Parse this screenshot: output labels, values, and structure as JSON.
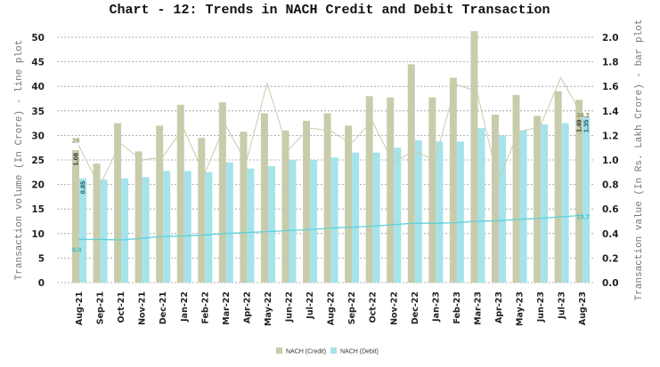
{
  "chart_data": {
    "type": "bar+line",
    "title": "Chart - 12: Trends in NACH Credit and Debit Transaction",
    "ylabel_left": "Transaction volume (In Crore) - line plot",
    "ylabel_right": "Transaction value (In Rs. Lakh Crore) - bar plot",
    "ylim_left": [
      0,
      55
    ],
    "yticks_left": [
      0,
      5,
      10,
      15,
      20,
      25,
      30,
      35,
      40,
      45,
      50
    ],
    "ylim_right": [
      0,
      2.2
    ],
    "yticks_right": [
      "0.0",
      "0.2",
      "0.4",
      "0.6",
      "0.8",
      "1.0",
      "1.2",
      "1.4",
      "1.6",
      "1.8",
      "2.0"
    ],
    "grid": true,
    "legend_position": "bottom",
    "categories": [
      "Aug-21",
      "Sep-21",
      "Oct-21",
      "Nov-21",
      "Dec-21",
      "Jan-22",
      "Feb-22",
      "Mar-22",
      "Apr-22",
      "May-22",
      "Jun-22",
      "Jul-22",
      "Aug-22",
      "Sep-22",
      "Oct-22",
      "Nov-22",
      "Dec-22",
      "Jan-23",
      "Feb-23",
      "Mar-23",
      "Apr-23",
      "May-23",
      "Jun-23",
      "Jul-23",
      "Aug-23"
    ],
    "bar_series": [
      {
        "name": "NACH (Credit)",
        "color": "#c8ccab",
        "axis": "right",
        "values": [
          1.08,
          0.97,
          1.3,
          1.07,
          1.28,
          1.45,
          1.18,
          1.47,
          1.23,
          1.38,
          1.24,
          1.32,
          1.38,
          1.28,
          1.52,
          1.51,
          1.78,
          1.51,
          1.67,
          2.05,
          1.37,
          1.53,
          1.36,
          1.56,
          1.49
        ]
      },
      {
        "name": "NACH (Debit)",
        "color": "#a6e3ea",
        "axis": "right",
        "values": [
          0.85,
          0.84,
          0.85,
          0.86,
          0.91,
          0.91,
          0.9,
          0.98,
          0.93,
          0.95,
          1.0,
          1.0,
          1.02,
          1.06,
          1.06,
          1.1,
          1.16,
          1.15,
          1.15,
          1.26,
          1.2,
          1.24,
          1.29,
          1.3,
          1.35
        ]
      }
    ],
    "line_series": [
      {
        "color": "#c8ccab",
        "axis": "left",
        "values": [
          28.1,
          19.6,
          28.4,
          25.0,
          25.5,
          31.5,
          22.0,
          32.2,
          24.5,
          40.6,
          27.0,
          31.5,
          31.0,
          28.3,
          33.0,
          24.5,
          26.8,
          25.0,
          40.4,
          39.0,
          20.8,
          30.8,
          31.7,
          41.8,
          34.2
        ]
      },
      {
        "color": "#5fd0d8",
        "axis": "left",
        "values": [
          8.8,
          8.8,
          8.7,
          9.0,
          9.4,
          9.5,
          9.7,
          10.0,
          10.2,
          10.4,
          10.6,
          10.8,
          11.1,
          11.3,
          11.5,
          11.8,
          12.1,
          12.1,
          12.2,
          12.5,
          12.6,
          12.9,
          13.1,
          13.4,
          13.7
        ]
      }
    ],
    "data_labels": {
      "credit_bar_first": "1.08",
      "debit_bar_first": "0.85",
      "credit_bar_last": "1.49",
      "debit_bar_last": "1.35",
      "credit_line_first": "28",
      "credit_line_last": "34.2",
      "debit_line_first": "8.8",
      "debit_line_last": "13.7"
    }
  }
}
